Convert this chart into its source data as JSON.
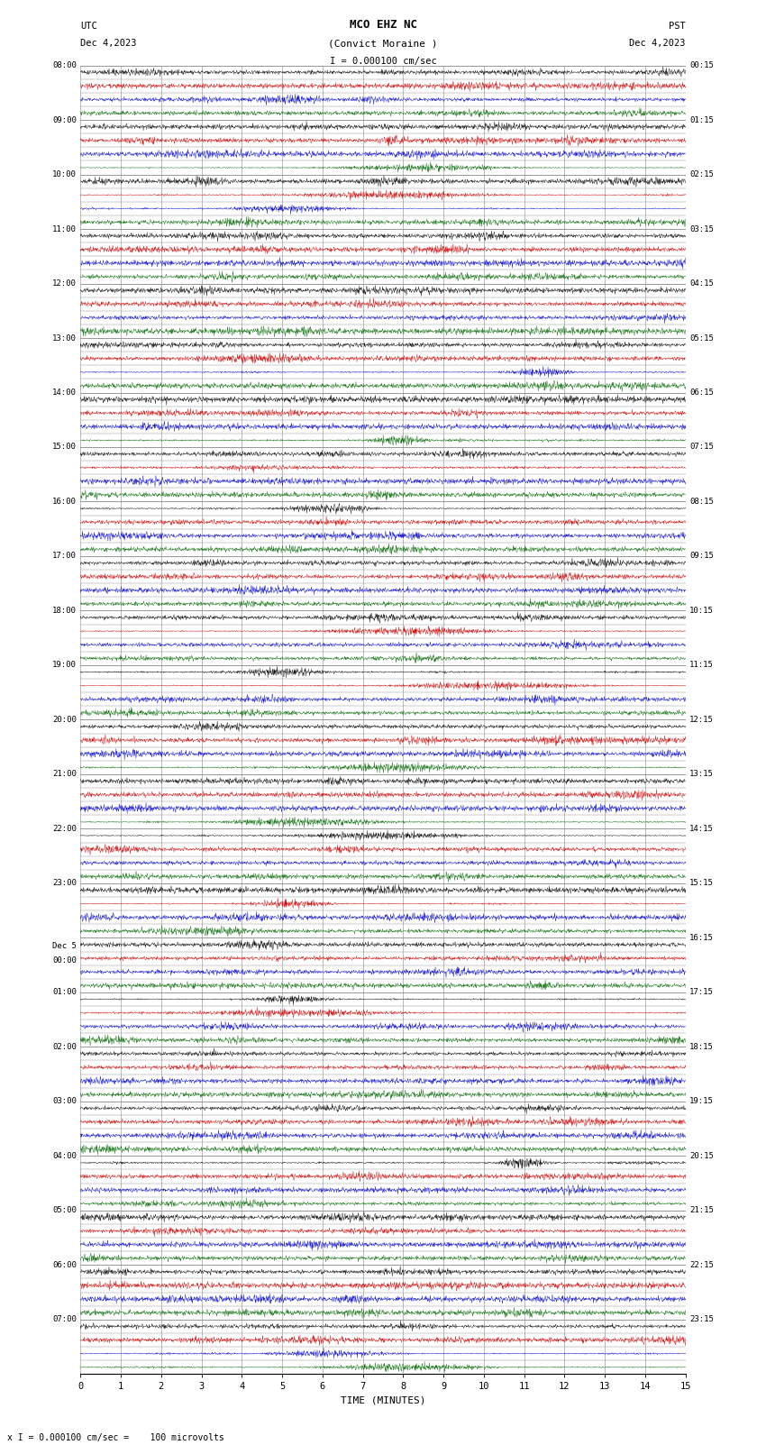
{
  "title_line1": "MCO EHZ NC",
  "title_line2": "(Convict Moraine )",
  "scale_text": "I = 0.000100 cm/sec",
  "left_label_line1": "UTC",
  "left_label_line2": "Dec 4,2023",
  "right_label_line1": "PST",
  "right_label_line2": "Dec 4,2023",
  "bottom_label": "x I = 0.000100 cm/sec =    100 microvolts",
  "xlabel": "TIME (MINUTES)",
  "time_max": 15,
  "xticks": [
    0,
    1,
    2,
    3,
    4,
    5,
    6,
    7,
    8,
    9,
    10,
    11,
    12,
    13,
    14,
    15
  ],
  "bg_color": "#ffffff",
  "grid_color": "#888888",
  "trace_colors": [
    "#000000",
    "#cc0000",
    "#0000cc",
    "#006600"
  ],
  "left_times": [
    "08:00",
    "09:00",
    "10:00",
    "11:00",
    "12:00",
    "13:00",
    "14:00",
    "15:00",
    "16:00",
    "17:00",
    "18:00",
    "19:00",
    "20:00",
    "21:00",
    "22:00",
    "23:00",
    "Dec 5\n00:00",
    "01:00",
    "02:00",
    "03:00",
    "04:00",
    "05:00",
    "06:00",
    "07:00"
  ],
  "right_times": [
    "00:15",
    "01:15",
    "02:15",
    "03:15",
    "04:15",
    "05:15",
    "06:15",
    "07:15",
    "08:15",
    "09:15",
    "10:15",
    "11:15",
    "12:15",
    "13:15",
    "14:15",
    "15:15",
    "16:15",
    "17:15",
    "18:15",
    "19:15",
    "20:15",
    "21:15",
    "22:15",
    "23:15"
  ],
  "n_hours": 24,
  "traces_per_hour": 4,
  "figwidth": 8.5,
  "figheight": 16.13,
  "dpi": 100
}
